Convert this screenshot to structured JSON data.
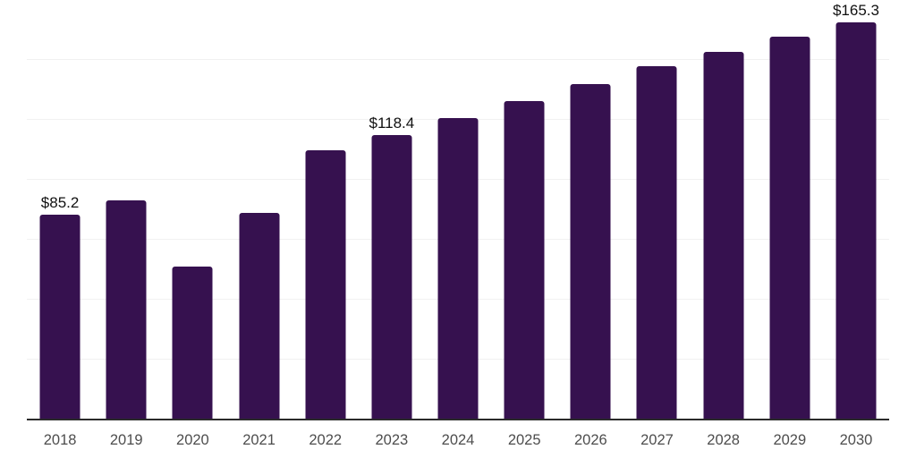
{
  "chart_data": {
    "type": "bar",
    "title": "",
    "xlabel": "",
    "ylabel": "",
    "categories": [
      "2018",
      "2019",
      "2020",
      "2021",
      "2022",
      "2023",
      "2024",
      "2025",
      "2026",
      "2027",
      "2028",
      "2029",
      "2030"
    ],
    "values": [
      85.2,
      91.0,
      63.5,
      86.0,
      112.0,
      118.4,
      125.4,
      132.6,
      139.7,
      146.9,
      153.1,
      159.5,
      165.3
    ],
    "data_labels": [
      "$85.2",
      "",
      "",
      "",
      "",
      "$118.4",
      "",
      "",
      "",
      "",
      "",
      "",
      "$165.3"
    ],
    "ylim": [
      0,
      175
    ],
    "gridline_step": 25,
    "grid": true,
    "legend": false,
    "y_axis_labels_visible": false,
    "colors": {
      "bar": "#36114f",
      "gridline": "#f1f1f1",
      "axis_line": "#2b2b2b",
      "x_tick_label": "#4d4d4d",
      "data_label": "#111111",
      "background": "#ffffff"
    }
  }
}
